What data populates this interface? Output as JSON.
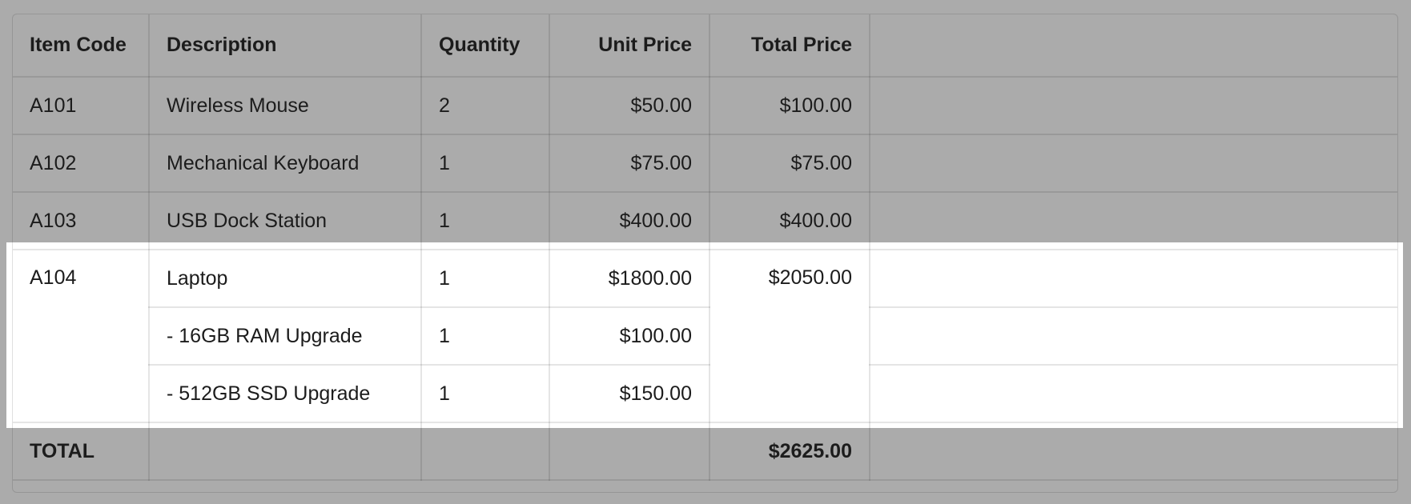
{
  "columns": [
    "Item Code",
    "Description",
    "Quantity",
    "Unit Price",
    "Total Price"
  ],
  "rows": [
    {
      "code": "A101",
      "description": "Wireless Mouse",
      "quantity": "2",
      "unit_price": "$50.00",
      "total_price": "$100.00"
    },
    {
      "code": "A102",
      "description": "Mechanical Keyboard",
      "quantity": "1",
      "unit_price": "$75.00",
      "total_price": "$75.00"
    },
    {
      "code": "A103",
      "description": "USB Dock Station",
      "quantity": "1",
      "unit_price": "$400.00",
      "total_price": "$400.00"
    }
  ],
  "group": {
    "code": "A104",
    "total_price": "$2050.00",
    "lines": [
      {
        "description": "Laptop",
        "quantity": "1",
        "unit_price": "$1800.00"
      },
      {
        "description": "- 16GB RAM Upgrade",
        "quantity": "1",
        "unit_price": "$100.00"
      },
      {
        "description": "- 512GB SSD Upgrade",
        "quantity": "1",
        "unit_price": "$150.00"
      }
    ]
  },
  "total": {
    "label": "TOTAL",
    "value": "$2625.00"
  },
  "colors": {
    "background": "#ababab",
    "highlight": "#ffffff"
  }
}
